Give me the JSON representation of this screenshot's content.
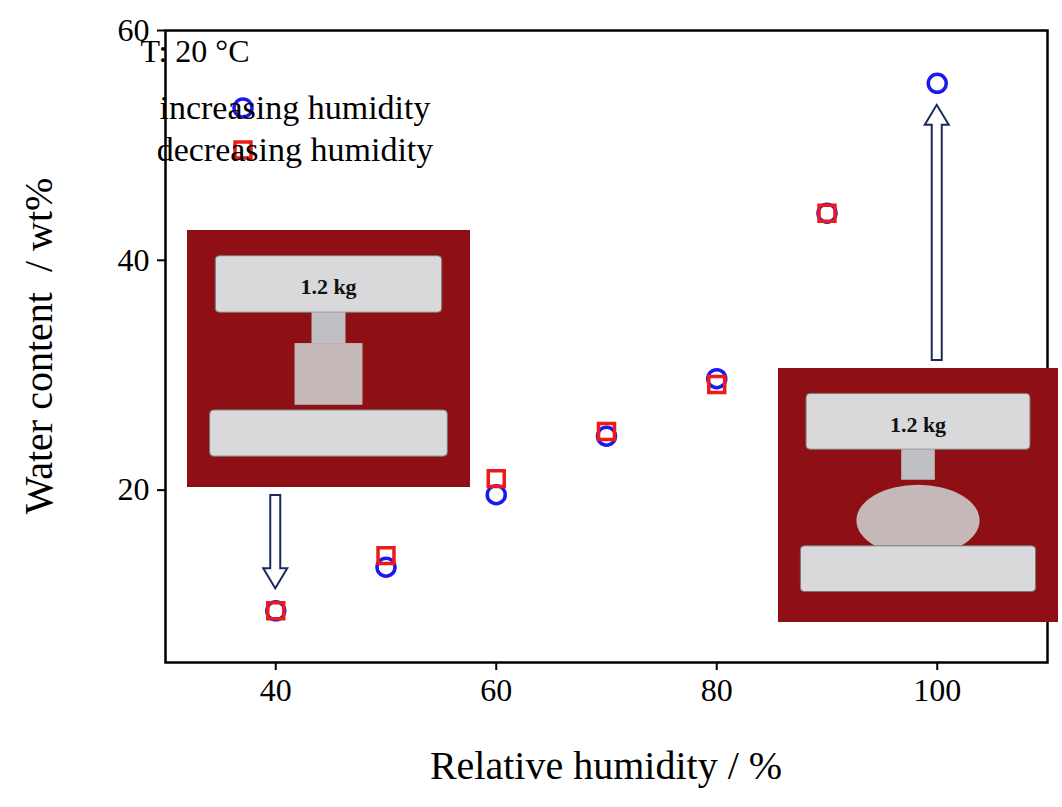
{
  "chart_data": {
    "type": "scatter",
    "x_label": "Relative humidity / %",
    "y_label": "Water content  / wt%",
    "annotations": [
      "T: 20 °C",
      "1.2 kg",
      "1.2 kg"
    ],
    "x": [
      40,
      50,
      60,
      70,
      80,
      90,
      100
    ],
    "series": [
      {
        "name": "increasing humidity",
        "color": "#1a1aee",
        "marker": "circle",
        "values": [
          9.5,
          13.3,
          19.6,
          24.7,
          29.7,
          44.1,
          55.4
        ]
      },
      {
        "name": "decreasing humidity",
        "color": "#ee1a1a",
        "marker": "square",
        "values": [
          9.5,
          14.3,
          21.0,
          25.1,
          29.2,
          44.1,
          null
        ]
      }
    ],
    "xlim": [
      30,
      110
    ],
    "ylim": [
      5,
      60
    ],
    "xticks": [
      40,
      60,
      80,
      100
    ],
    "yticks": [
      20,
      40,
      60
    ],
    "legend": "top-left"
  }
}
